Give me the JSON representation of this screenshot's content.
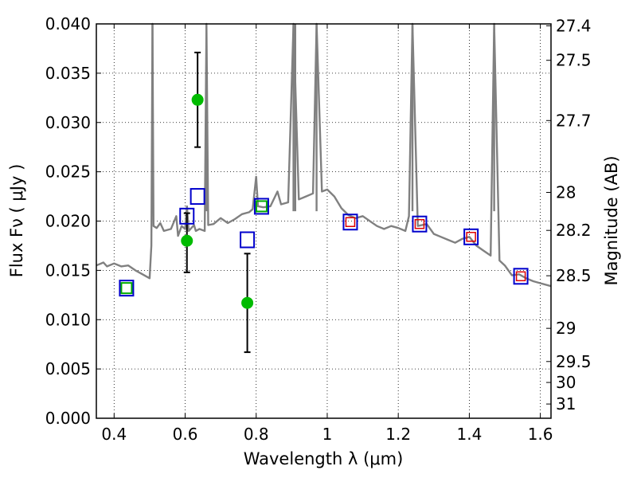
{
  "chart_data": {
    "type": "scatter",
    "title": "",
    "xlabel": "Wavelength  λ (μm)",
    "ylabel": "Flux  Fν  ( μJy )",
    "ylabel_right": "Magnitude (AB)",
    "xlim": [
      0.35,
      1.63
    ],
    "ylim": [
      0.0,
      0.04
    ],
    "grid": true,
    "grid_style": "dotted",
    "x_ticks": [
      0.4,
      0.6,
      0.8,
      1.0,
      1.2,
      1.4,
      1.6
    ],
    "x_tick_labels": [
      "0.4",
      "0.6",
      "0.8",
      "1",
      "1.2",
      "1.4",
      "1.6"
    ],
    "y_ticks": [
      0.0,
      0.005,
      0.01,
      0.015,
      0.02,
      0.025,
      0.03,
      0.035,
      0.04
    ],
    "y_tick_labels": [
      "0.000",
      "0.005",
      "0.010",
      "0.015",
      "0.020",
      "0.025",
      "0.030",
      "0.035",
      "0.040"
    ],
    "right_ticks_mag": [
      27.4,
      27.5,
      27.7,
      28,
      28.2,
      28.5,
      29,
      29.5,
      30,
      31
    ],
    "right_tick_labels": [
      "27.4",
      "27.5",
      "27.7",
      "28",
      "28.2",
      "28.5",
      "29",
      "29.5",
      "30",
      "31"
    ],
    "colors": {
      "spectrum": "#808080",
      "observed": "#00bb00",
      "errorbar": "#000000",
      "model_box": "#0000cc",
      "model_green": "#00aa00",
      "model_red": "#dd0000"
    },
    "series": [
      {
        "kind": "spectrum",
        "points": [
          [
            0.35,
            0.0155
          ],
          [
            0.37,
            0.0158
          ],
          [
            0.38,
            0.0154
          ],
          [
            0.4,
            0.0157
          ],
          [
            0.42,
            0.0154
          ],
          [
            0.44,
            0.0155
          ],
          [
            0.46,
            0.015
          ],
          [
            0.48,
            0.0146
          ],
          [
            0.5,
            0.0142
          ],
          [
            0.505,
            0.0175
          ],
          [
            0.508,
            0.04
          ],
          [
            0.511,
            0.0195
          ],
          [
            0.52,
            0.0193
          ],
          [
            0.53,
            0.0198
          ],
          [
            0.54,
            0.019
          ],
          [
            0.56,
            0.0192
          ],
          [
            0.575,
            0.0205
          ],
          [
            0.58,
            0.0185
          ],
          [
            0.59,
            0.0195
          ],
          [
            0.6,
            0.0192
          ],
          [
            0.605,
            0.0215
          ],
          [
            0.61,
            0.019
          ],
          [
            0.625,
            0.0196
          ],
          [
            0.63,
            0.019
          ],
          [
            0.64,
            0.0192
          ],
          [
            0.655,
            0.019
          ],
          [
            0.66,
            0.04
          ],
          [
            0.665,
            0.0196
          ],
          [
            0.68,
            0.0197
          ],
          [
            0.7,
            0.0203
          ],
          [
            0.72,
            0.0198
          ],
          [
            0.74,
            0.0202
          ],
          [
            0.76,
            0.0207
          ],
          [
            0.78,
            0.0209
          ],
          [
            0.79,
            0.0212
          ],
          [
            0.8,
            0.0245
          ],
          [
            0.805,
            0.0215
          ],
          [
            0.82,
            0.0214
          ],
          [
            0.84,
            0.0215
          ],
          [
            0.86,
            0.023
          ],
          [
            0.87,
            0.0217
          ],
          [
            0.89,
            0.0219
          ],
          [
            0.905,
            0.04
          ],
          [
            0.92,
            0.0222
          ],
          [
            0.94,
            0.0225
          ],
          [
            0.96,
            0.0228
          ],
          [
            0.97,
            0.04
          ],
          [
            0.985,
            0.023
          ],
          [
            1.0,
            0.0232
          ],
          [
            1.02,
            0.0225
          ],
          [
            1.04,
            0.0213
          ],
          [
            1.06,
            0.0206
          ],
          [
            1.08,
            0.0203
          ],
          [
            1.1,
            0.0205
          ],
          [
            1.12,
            0.02
          ],
          [
            1.14,
            0.0195
          ],
          [
            1.16,
            0.0192
          ],
          [
            1.18,
            0.0195
          ],
          [
            1.2,
            0.0193
          ],
          [
            1.22,
            0.019
          ],
          [
            1.23,
            0.0205
          ],
          [
            1.24,
            0.04
          ],
          [
            1.255,
            0.0195
          ],
          [
            1.28,
            0.0197
          ],
          [
            1.3,
            0.0187
          ],
          [
            1.32,
            0.0184
          ],
          [
            1.34,
            0.0181
          ],
          [
            1.36,
            0.0178
          ],
          [
            1.38,
            0.0182
          ],
          [
            1.4,
            0.0184
          ],
          [
            1.42,
            0.0175
          ],
          [
            1.44,
            0.017
          ],
          [
            1.46,
            0.0165
          ],
          [
            1.47,
            0.04
          ],
          [
            1.485,
            0.016
          ],
          [
            1.5,
            0.0155
          ],
          [
            1.52,
            0.0145
          ],
          [
            1.54,
            0.0146
          ],
          [
            1.56,
            0.0142
          ],
          [
            1.58,
            0.0139
          ],
          [
            1.6,
            0.0137
          ],
          [
            1.63,
            0.0134
          ]
        ],
        "narrow_lines": [
          0.508,
          0.66,
          0.905,
          0.91,
          0.97,
          1.24,
          1.47
        ]
      },
      {
        "kind": "observed_with_errors",
        "points": [
          {
            "x": 0.605,
            "y": 0.018,
            "ylo": 0.0148,
            "yhi": 0.0208
          },
          {
            "x": 0.635,
            "y": 0.0323,
            "ylo": 0.0275,
            "yhi": 0.0371
          },
          {
            "x": 0.775,
            "y": 0.0117,
            "ylo": 0.0067,
            "yhi": 0.0167
          }
        ]
      },
      {
        "kind": "model_boxes",
        "points": [
          {
            "x": 0.435,
            "y": 0.0132,
            "inner": "green"
          },
          {
            "x": 0.605,
            "y": 0.0205,
            "inner": "none"
          },
          {
            "x": 0.635,
            "y": 0.0225,
            "inner": "none"
          },
          {
            "x": 0.775,
            "y": 0.0181,
            "inner": "none"
          },
          {
            "x": 0.815,
            "y": 0.0215,
            "inner": "green"
          },
          {
            "x": 1.065,
            "y": 0.0199,
            "inner": "red"
          },
          {
            "x": 1.26,
            "y": 0.0197,
            "inner": "red"
          },
          {
            "x": 1.405,
            "y": 0.0184,
            "inner": "red"
          },
          {
            "x": 1.545,
            "y": 0.0144,
            "inner": "red"
          }
        ]
      }
    ]
  }
}
